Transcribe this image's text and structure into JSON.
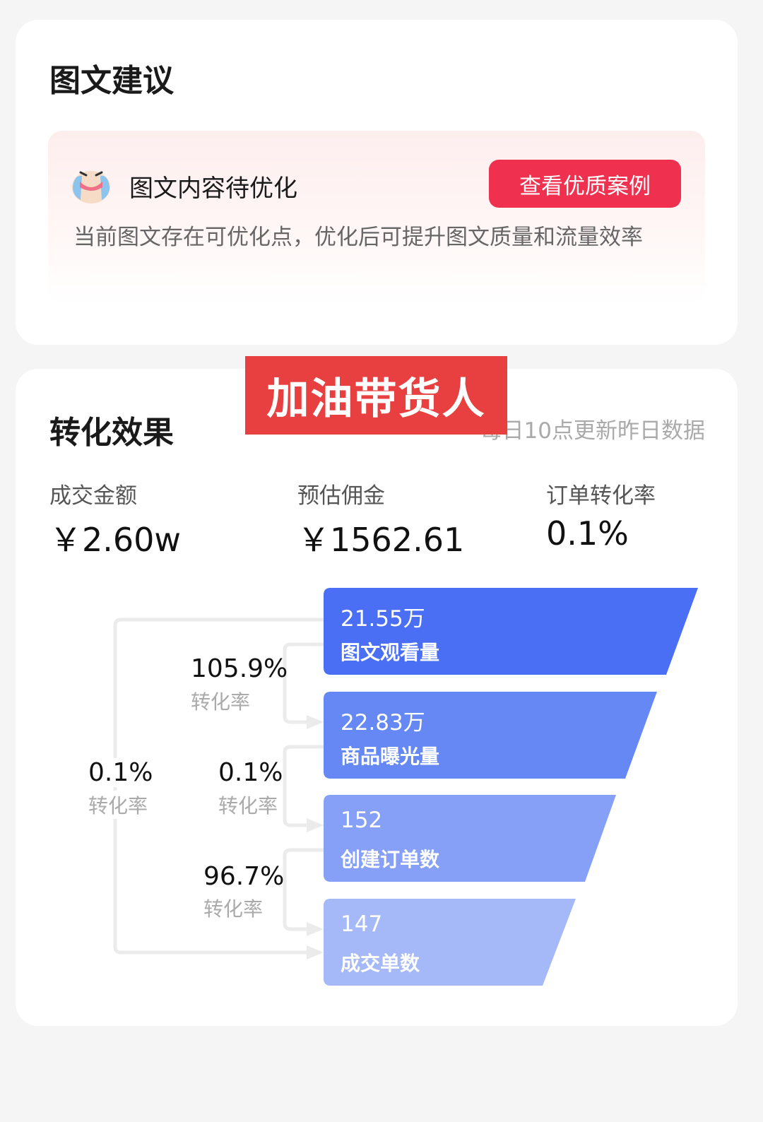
{
  "suggestion_card": {
    "title": "图文建议",
    "notice": {
      "icon": "crying-face-icon",
      "heading": "图文内容待优化",
      "button_label": "查看优质案例",
      "description": "当前图文存在可优化点，优化后可提升图文质量和流量效率"
    }
  },
  "conversion_card": {
    "title": "转化效果",
    "overlay_banner": "加油带货人",
    "update_note": "每日10点更新昨日数据",
    "metrics": [
      {
        "label": "成交金额",
        "value": "￥2.60w"
      },
      {
        "label": "预估佣金",
        "value": "￥1562.61"
      },
      {
        "label": "订单转化率",
        "value": "0.1%"
      }
    ],
    "funnel": [
      {
        "value": "21.55万",
        "label": "图文观看量",
        "color": "#4a6ff5"
      },
      {
        "value": "22.83万",
        "label": "商品曝光量",
        "color": "#6688f5"
      },
      {
        "value": "152",
        "label": "创建订单数",
        "color": "#86a0f7"
      },
      {
        "value": "147",
        "label": "成交单数",
        "color": "#a5b9f8"
      }
    ],
    "rates": [
      {
        "value": "105.9%",
        "label": "转化率"
      },
      {
        "value": "0.1%",
        "label": "转化率"
      },
      {
        "value": "96.7%",
        "label": "转化率"
      },
      {
        "value": "0.1%",
        "label": "转化率"
      }
    ]
  }
}
